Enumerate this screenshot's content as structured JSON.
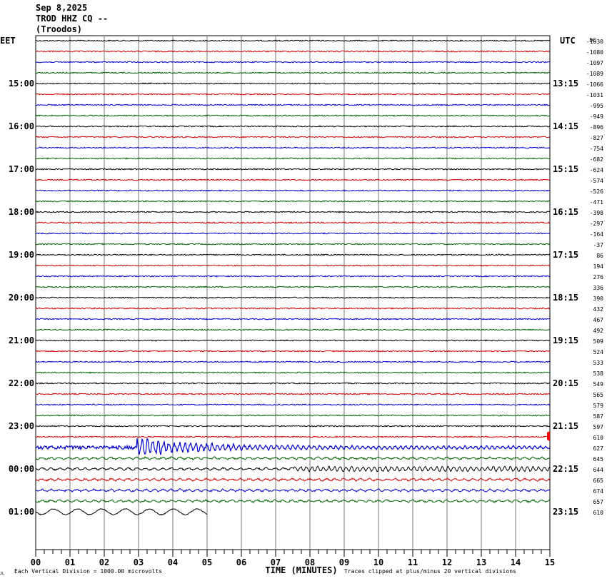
{
  "header": {
    "date": "Sep 8,2025",
    "station": "TROD HHZ CQ --",
    "location": "(Troodos)"
  },
  "chart_data": {
    "type": "line",
    "title": "",
    "left_axis_title": "EET",
    "right_axis_title": "UTC",
    "dc_title": "DC",
    "xlabel": "TIME (MINUTES)",
    "x_ticks": [
      "00",
      "01",
      "02",
      "03",
      "04",
      "05",
      "06",
      "07",
      "08",
      "09",
      "10",
      "11",
      "12",
      "13",
      "14",
      "15"
    ],
    "xlim": [
      0,
      15
    ],
    "left_time_labels": [
      "15:00",
      "16:00",
      "17:00",
      "18:00",
      "19:00",
      "20:00",
      "21:00",
      "22:00",
      "23:00",
      "00:00",
      "01:00"
    ],
    "right_time_labels": [
      "13:15",
      "14:15",
      "15:15",
      "16:15",
      "17:15",
      "18:15",
      "19:15",
      "20:15",
      "21:15",
      "22:15",
      "23:15"
    ],
    "time_label_first_row": 4,
    "time_label_row_step": 4,
    "dc_offsets": [
      "-1030",
      "-1080",
      "-1097",
      "-1089",
      "-1066",
      "-1031",
      "-995",
      "-949",
      "-896",
      "-827",
      "-754",
      "-682",
      "-624",
      "-574",
      "-526",
      "-471",
      "-398",
      "-297",
      "-164",
      "-37",
      "86",
      "194",
      "276",
      "336",
      "390",
      "432",
      "467",
      "492",
      "509",
      "524",
      "533",
      "538",
      "549",
      "565",
      "579",
      "587",
      "597",
      "610",
      "627",
      "645",
      "644",
      "665",
      "674",
      "657",
      "610"
    ],
    "trace_colors": [
      "#000000",
      "#cc0000",
      "#0000cc",
      "#006600"
    ],
    "event": {
      "row": 38,
      "start_minute": 2.95,
      "description": "earthquake arrivals on blue trace"
    },
    "current_row_end_minute": 5.0,
    "footer_left": "Each Vertical Division = 1000.00 microvolts",
    "footer_right": "Traces clipped at plus/minus 20 vertical divisions",
    "corner_mark": "JL"
  }
}
